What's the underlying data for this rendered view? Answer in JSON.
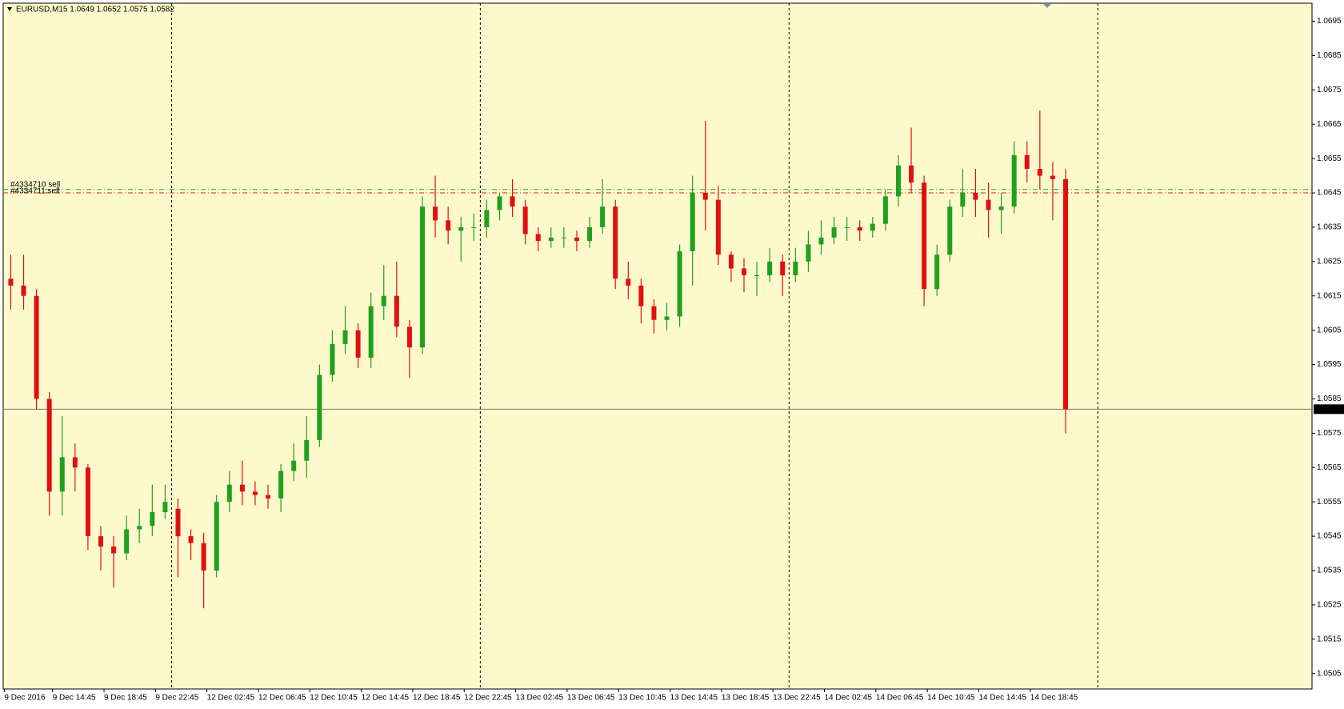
{
  "chart_data": {
    "type": "candlestick",
    "title": "EURUSD,M15  1.0649 1.0652 1.0575 1.0582",
    "open": [
      1.062,
      1.0618,
      1.0615,
      1.0585,
      1.0558,
      1.0568,
      1.0565,
      1.0545,
      1.0542,
      1.054,
      1.0547,
      1.0548,
      1.0552,
      1.0553,
      1.0545,
      1.0543,
      1.0535,
      1.0555,
      1.056,
      1.0558,
      1.0557,
      1.0556,
      1.0564,
      1.0567,
      1.0573,
      1.0592,
      1.0601,
      1.0605,
      1.0597,
      1.0612,
      1.0615,
      1.0606,
      1.06,
      1.0641,
      1.0637,
      1.0634,
      1.0635,
      1.0635,
      1.064,
      1.0644,
      1.0641,
      1.0633,
      1.0631,
      1.0632,
      1.0632,
      1.0631,
      1.0635,
      1.0641,
      1.062,
      1.0618,
      1.0612,
      1.0608,
      1.0609,
      1.0628,
      1.0645,
      1.0643,
      1.0627,
      1.0623,
      1.0621,
      1.0621,
      1.0625,
      1.0621,
      1.0625,
      1.063,
      1.0632,
      1.0635,
      1.0635,
      1.0634,
      1.0636,
      1.0644,
      1.0653,
      1.0648,
      1.0617,
      1.0627,
      1.0641,
      1.0645,
      1.0643,
      1.064,
      1.0641,
      1.0656,
      1.0652,
      1.065,
      1.0649
    ],
    "high": [
      1.0627,
      1.0627,
      1.0617,
      1.0587,
      1.058,
      1.0572,
      1.0566,
      1.0548,
      1.0545,
      1.0551,
      1.0553,
      1.056,
      1.056,
      1.0556,
      1.0547,
      1.0546,
      1.0557,
      1.0564,
      1.0567,
      1.0561,
      1.056,
      1.0566,
      1.0572,
      1.058,
      1.0595,
      1.0605,
      1.0612,
      1.0607,
      1.0616,
      1.0624,
      1.0625,
      1.0608,
      1.0644,
      1.065,
      1.0641,
      1.0638,
      1.0639,
      1.0643,
      1.0645,
      1.0649,
      1.0643,
      1.0635,
      1.0635,
      1.0635,
      1.0634,
      1.0638,
      1.0649,
      1.0643,
      1.0625,
      1.062,
      1.0614,
      1.0613,
      1.063,
      1.065,
      1.0666,
      1.0647,
      1.0628,
      1.0626,
      1.0625,
      1.0629,
      1.0627,
      1.0629,
      1.0634,
      1.0637,
      1.0638,
      1.0638,
      1.0637,
      1.0638,
      1.0646,
      1.0656,
      1.0664,
      1.065,
      1.063,
      1.0643,
      1.0652,
      1.0652,
      1.0648,
      1.0645,
      1.066,
      1.066,
      1.0669,
      1.0654,
      1.0652
    ],
    "low": [
      1.0611,
      1.0611,
      1.0582,
      1.0551,
      1.0551,
      1.0558,
      1.0541,
      1.0535,
      1.053,
      1.0538,
      1.0543,
      1.0545,
      1.055,
      1.0533,
      1.0538,
      1.0524,
      1.0533,
      1.0552,
      1.0554,
      1.0554,
      1.0553,
      1.0552,
      1.0561,
      1.0562,
      1.0571,
      1.059,
      1.0598,
      1.0594,
      1.0594,
      1.0608,
      1.0603,
      1.0591,
      1.0598,
      1.0632,
      1.063,
      1.0625,
      1.0631,
      1.0632,
      1.0637,
      1.0638,
      1.063,
      1.0628,
      1.0629,
      1.0629,
      1.0628,
      1.0629,
      1.0633,
      1.0617,
      1.0614,
      1.0607,
      1.0604,
      1.0605,
      1.0606,
      1.0618,
      1.0634,
      1.0624,
      1.0619,
      1.0616,
      1.0615,
      1.0619,
      1.0615,
      1.0619,
      1.0622,
      1.0627,
      1.063,
      1.0631,
      1.0631,
      1.0632,
      1.0634,
      1.0641,
      1.0645,
      1.0612,
      1.0615,
      1.0625,
      1.0638,
      1.0638,
      1.0632,
      1.0633,
      1.0639,
      1.0648,
      1.0646,
      1.0637,
      1.0575
    ],
    "close": [
      1.0618,
      1.0615,
      1.0585,
      1.0558,
      1.0568,
      1.0565,
      1.0545,
      1.0542,
      1.054,
      1.0547,
      1.0548,
      1.0552,
      1.0555,
      1.0545,
      1.0543,
      1.0535,
      1.0555,
      1.056,
      1.0558,
      1.0557,
      1.0556,
      1.0564,
      1.0567,
      1.0573,
      1.0592,
      1.0601,
      1.0605,
      1.0597,
      1.0612,
      1.0615,
      1.0606,
      1.06,
      1.0641,
      1.0637,
      1.0634,
      1.0635,
      1.0635,
      1.064,
      1.0644,
      1.0641,
      1.0633,
      1.0631,
      1.0632,
      1.0632,
      1.0631,
      1.0635,
      1.0641,
      1.062,
      1.0618,
      1.0612,
      1.0608,
      1.0609,
      1.0628,
      1.0645,
      1.0643,
      1.0627,
      1.0623,
      1.0621,
      1.0621,
      1.0625,
      1.0621,
      1.0625,
      1.063,
      1.0632,
      1.0635,
      1.0635,
      1.0634,
      1.0636,
      1.0644,
      1.0653,
      1.0648,
      1.0617,
      1.0627,
      1.0641,
      1.0645,
      1.0643,
      1.064,
      1.0641,
      1.0656,
      1.0652,
      1.065,
      1.0649,
      1.0582
    ],
    "up_color": "#1fa01f",
    "down_color": "#e01010",
    "ylim": [
      1.05005,
      1.070025
    ],
    "yticks": [
      1.0505,
      1.0515,
      1.0525,
      1.0535,
      1.0545,
      1.0555,
      1.0565,
      1.0575,
      1.0585,
      1.0595,
      1.0605,
      1.0615,
      1.0625,
      1.0635,
      1.0645,
      1.0655,
      1.0665,
      1.0675,
      1.0685,
      1.0695
    ],
    "xticks": [
      {
        "value": 0,
        "label": "9 Dec 2016"
      },
      {
        "value": 3.75,
        "label": "9 Dec 14:45"
      },
      {
        "value": 7.75,
        "label": "9 Dec 18:45"
      },
      {
        "value": 11.75,
        "label": "9 Dec 22:45"
      },
      {
        "value": 15.75,
        "label": "12 Dec 02:45"
      },
      {
        "value": 19.75,
        "label": "12 Dec 06:45"
      },
      {
        "value": 23.75,
        "label": "12 Dec 10:45"
      },
      {
        "value": 27.75,
        "label": "12 Dec 14:45"
      },
      {
        "value": 31.75,
        "label": "12 Dec 18:45"
      },
      {
        "value": 35.75,
        "label": "12 Dec 22:45"
      },
      {
        "value": 39.75,
        "label": "13 Dec 02:45"
      },
      {
        "value": 43.75,
        "label": "13 Dec 06:45"
      },
      {
        "value": 47.75,
        "label": "13 Dec 10:45"
      },
      {
        "value": 51.75,
        "label": "13 Dec 14:45"
      },
      {
        "value": 55.75,
        "label": "13 Dec 18:45"
      },
      {
        "value": 59.75,
        "label": "13 Dec 22:45"
      },
      {
        "value": 63.75,
        "label": "14 Dec 02:45"
      },
      {
        "value": 67.75,
        "label": "14 Dec 06:45"
      },
      {
        "value": 71.75,
        "label": "14 Dec 10:45"
      },
      {
        "value": 75.75,
        "label": "14 Dec 14:45"
      },
      {
        "value": 79.75,
        "label": "14 Dec 18:45"
      }
    ],
    "period_separators": [
      13,
      37,
      61,
      85
    ],
    "orders": [
      {
        "label": "#4334710 sell",
        "price": 1.0646,
        "color": "#2aa52a"
      },
      {
        "label": "#4334711 sell",
        "price": 1.0645,
        "color": "#d42020"
      }
    ],
    "bid": 1.0582
  }
}
